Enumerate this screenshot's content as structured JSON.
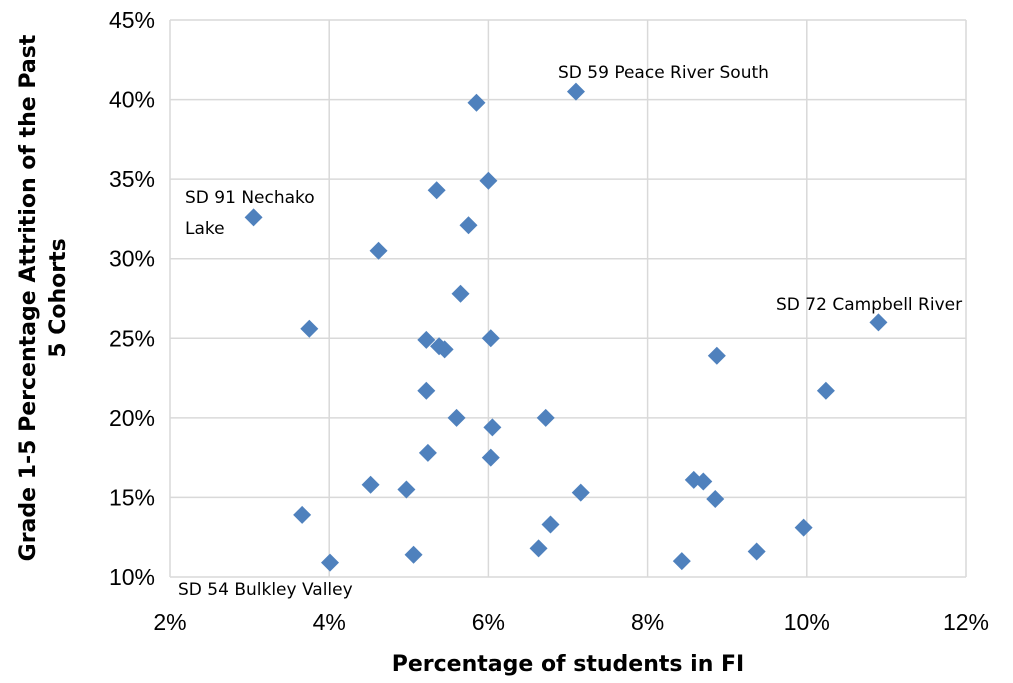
{
  "chart_data": {
    "type": "scatter",
    "xlabel": "Percentage of students in FI",
    "ylabel_lines": [
      "Grade 1-5 Percentage Attrition of the Past",
      "5 Cohorts"
    ],
    "xlim": [
      0.02,
      0.12
    ],
    "ylim": [
      0.1,
      0.45
    ],
    "x_ticks": [
      0.02,
      0.04,
      0.06,
      0.08,
      0.1,
      0.12
    ],
    "x_tick_labels": [
      "2%",
      "4%",
      "6%",
      "8%",
      "10%",
      "12%"
    ],
    "y_ticks": [
      0.1,
      0.15,
      0.2,
      0.25,
      0.3,
      0.35,
      0.4,
      0.45
    ],
    "y_tick_labels": [
      "10%",
      "15%",
      "20%",
      "25%",
      "30%",
      "35%",
      "40%",
      "45%"
    ],
    "grid": true,
    "marker": "diamond",
    "marker_color": "#4f81bd",
    "points": [
      {
        "x": 0.0585,
        "y": 0.398
      },
      {
        "x": 0.071,
        "y": 0.405
      },
      {
        "x": 0.06,
        "y": 0.349
      },
      {
        "x": 0.0535,
        "y": 0.343
      },
      {
        "x": 0.0305,
        "y": 0.326
      },
      {
        "x": 0.0575,
        "y": 0.321
      },
      {
        "x": 0.0462,
        "y": 0.305
      },
      {
        "x": 0.0565,
        "y": 0.278
      },
      {
        "x": 0.109,
        "y": 0.26
      },
      {
        "x": 0.0375,
        "y": 0.256
      },
      {
        "x": 0.0522,
        "y": 0.249
      },
      {
        "x": 0.0538,
        "y": 0.245
      },
      {
        "x": 0.0545,
        "y": 0.243
      },
      {
        "x": 0.0603,
        "y": 0.25
      },
      {
        "x": 0.0887,
        "y": 0.239
      },
      {
        "x": 0.0522,
        "y": 0.217
      },
      {
        "x": 0.1024,
        "y": 0.217
      },
      {
        "x": 0.056,
        "y": 0.2
      },
      {
        "x": 0.0672,
        "y": 0.2
      },
      {
        "x": 0.0605,
        "y": 0.194
      },
      {
        "x": 0.0524,
        "y": 0.178
      },
      {
        "x": 0.0603,
        "y": 0.175
      },
      {
        "x": 0.0858,
        "y": 0.161
      },
      {
        "x": 0.087,
        "y": 0.16
      },
      {
        "x": 0.0452,
        "y": 0.158
      },
      {
        "x": 0.0497,
        "y": 0.155
      },
      {
        "x": 0.0716,
        "y": 0.153
      },
      {
        "x": 0.0885,
        "y": 0.149
      },
      {
        "x": 0.0366,
        "y": 0.139
      },
      {
        "x": 0.0678,
        "y": 0.133
      },
      {
        "x": 0.0996,
        "y": 0.131
      },
      {
        "x": 0.0663,
        "y": 0.118
      },
      {
        "x": 0.0937,
        "y": 0.116
      },
      {
        "x": 0.0506,
        "y": 0.114
      },
      {
        "x": 0.0401,
        "y": 0.109
      },
      {
        "x": 0.0843,
        "y": 0.11
      }
    ],
    "annotations": [
      {
        "lines": [
          "SD 59 Peace River South"
        ]
      },
      {
        "lines": [
          "SD 91 Nechako",
          "Lake"
        ]
      },
      {
        "lines": [
          "SD 72 Campbell River"
        ]
      },
      {
        "lines": [
          "SD 54 Bulkley Valley"
        ]
      }
    ]
  }
}
